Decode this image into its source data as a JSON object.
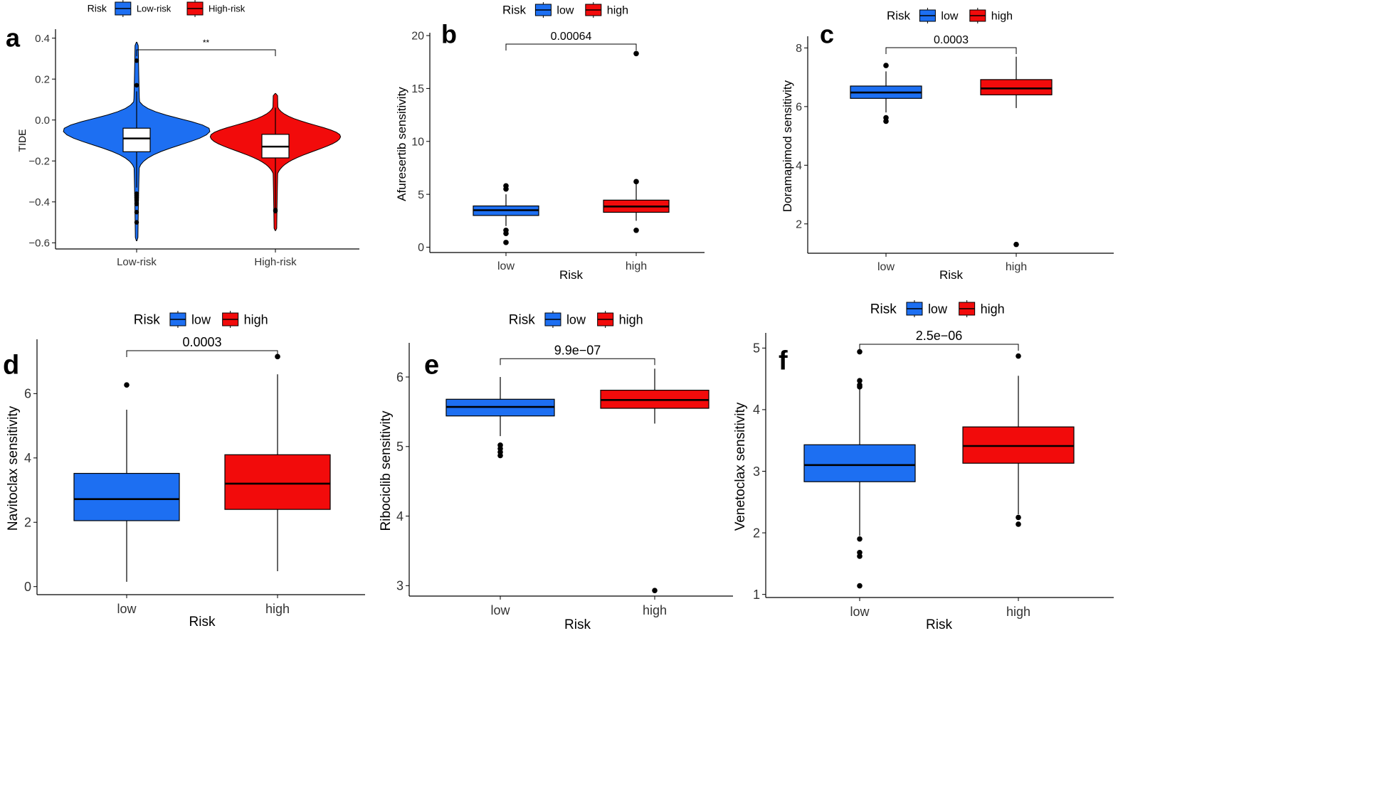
{
  "colors": {
    "low": "#1d6ff2",
    "high": "#f20b0b",
    "axis": "#000000",
    "median": "#000000"
  },
  "chart_data": [
    {
      "panel": "a",
      "type": "violin+box",
      "legend_title": "Risk",
      "legend_labels": [
        "Low-risk",
        "High-risk"
      ],
      "categories": [
        "Low-risk",
        "High-risk"
      ],
      "xlabel": "",
      "ylabel": "TIDE",
      "ylim": [
        -0.63,
        0.43
      ],
      "yticks": [
        -0.6,
        -0.4,
        -0.2,
        0.0,
        0.2,
        0.4
      ],
      "ytick_labels": [
        "−0.6",
        "−0.4",
        "−0.2",
        "0.0",
        "0.2",
        "0.4"
      ],
      "significance": "**",
      "series": [
        {
          "name": "Low-risk",
          "q1": -0.155,
          "median": -0.09,
          "q3": -0.04,
          "whisker_low": -0.33,
          "whisker_high": 0.14,
          "outliers": [
            0.29,
            0.17,
            -0.36,
            -0.37,
            -0.38,
            -0.39,
            -0.41,
            -0.45,
            -0.5
          ],
          "violin_min": -0.59,
          "violin_max": 0.38,
          "violin_peak": -0.05,
          "violin_halfwidth": 0.53
        },
        {
          "name": "High-risk",
          "q1": -0.185,
          "median": -0.13,
          "q3": -0.07,
          "whisker_low": -0.43,
          "whisker_high": 0.06,
          "outliers": [
            -0.44,
            -0.445
          ],
          "violin_min": -0.54,
          "violin_max": 0.13,
          "violin_peak": -0.08,
          "violin_halfwidth": 0.47
        }
      ]
    },
    {
      "panel": "b",
      "type": "box",
      "legend_title": "Risk",
      "legend_labels": [
        "low",
        "high"
      ],
      "categories": [
        "low",
        "high"
      ],
      "xlabel": "Risk",
      "ylabel": "Afuresertib sensitivity",
      "ylim": [
        -0.5,
        20
      ],
      "yticks": [
        0,
        5,
        10,
        15,
        20
      ],
      "ytick_labels": [
        "0",
        "5",
        "10",
        "15",
        "20"
      ],
      "pvalue": "0.00064",
      "series": [
        {
          "name": "low",
          "q1": 3.0,
          "median": 3.5,
          "q3": 3.9,
          "whisker_low": 2.0,
          "whisker_high": 5.0,
          "outliers": [
            5.8,
            5.5,
            1.6,
            1.3,
            0.45
          ]
        },
        {
          "name": "high",
          "q1": 3.3,
          "median": 3.85,
          "q3": 4.45,
          "whisker_low": 2.5,
          "whisker_high": 6.0,
          "outliers": [
            18.3,
            6.2,
            1.6
          ]
        }
      ]
    },
    {
      "panel": "c",
      "type": "box",
      "legend_title": "Risk",
      "legend_labels": [
        "low",
        "high"
      ],
      "categories": [
        "low",
        "high"
      ],
      "xlabel": "Risk",
      "ylabel": "Doramapimod sensitivity",
      "ylim": [
        1.0,
        8.3
      ],
      "yticks": [
        2,
        4,
        6,
        8
      ],
      "ytick_labels": [
        "2",
        "4",
        "6",
        "8"
      ],
      "pvalue": "0.0003",
      "series": [
        {
          "name": "low",
          "q1": 6.28,
          "median": 6.48,
          "q3": 6.7,
          "whisker_low": 5.8,
          "whisker_high": 7.2,
          "outliers": [
            7.4,
            5.62,
            5.5
          ]
        },
        {
          "name": "high",
          "q1": 6.4,
          "median": 6.62,
          "q3": 6.92,
          "whisker_low": 5.95,
          "whisker_high": 7.7,
          "outliers": [
            1.3
          ]
        }
      ]
    },
    {
      "panel": "d",
      "type": "box",
      "legend_title": "Risk",
      "legend_labels": [
        "low",
        "high"
      ],
      "categories": [
        "low",
        "high"
      ],
      "xlabel": "Risk",
      "ylabel": "Navitoclax sensitivity",
      "ylim": [
        -0.25,
        7.6
      ],
      "yticks": [
        0,
        2,
        4,
        6
      ],
      "ytick_labels": [
        "0",
        "2",
        "4",
        "6"
      ],
      "pvalue": "0.0003",
      "series": [
        {
          "name": "low",
          "q1": 2.05,
          "median": 2.72,
          "q3": 3.52,
          "whisker_low": 0.15,
          "whisker_high": 5.5,
          "outliers": [
            6.27
          ]
        },
        {
          "name": "high",
          "q1": 2.4,
          "median": 3.2,
          "q3": 4.1,
          "whisker_low": 0.48,
          "whisker_high": 6.6,
          "outliers": [
            7.15
          ]
        }
      ]
    },
    {
      "panel": "e",
      "type": "box",
      "legend_title": "Risk",
      "legend_labels": [
        "low",
        "high"
      ],
      "categories": [
        "low",
        "high"
      ],
      "xlabel": "Risk",
      "ylabel": "Ribociclib sensitivity",
      "ylim": [
        2.85,
        6.45
      ],
      "yticks": [
        3,
        4,
        5,
        6
      ],
      "ytick_labels": [
        "3",
        "4",
        "5",
        "6"
      ],
      "pvalue": "9.9e−07",
      "series": [
        {
          "name": "low",
          "q1": 5.44,
          "median": 5.57,
          "q3": 5.68,
          "whisker_low": 5.15,
          "whisker_high": 6.0,
          "outliers": [
            5.02,
            4.97,
            4.92,
            4.87
          ]
        },
        {
          "name": "high",
          "q1": 5.55,
          "median": 5.67,
          "q3": 5.81,
          "whisker_low": 5.33,
          "whisker_high": 6.12,
          "outliers": [
            2.93
          ]
        }
      ]
    },
    {
      "panel": "f",
      "type": "box",
      "legend_title": "Risk",
      "legend_labels": [
        "low",
        "high"
      ],
      "categories": [
        "low",
        "high"
      ],
      "xlabel": "Risk",
      "ylabel": "Venetoclax sensitivity",
      "ylim": [
        0.95,
        5.2
      ],
      "yticks": [
        1,
        2,
        3,
        4,
        5
      ],
      "ytick_labels": [
        "1",
        "2",
        "3",
        "4",
        "5"
      ],
      "pvalue": "2.5e−06",
      "series": [
        {
          "name": "low",
          "q1": 2.83,
          "median": 3.1,
          "q3": 3.43,
          "whisker_low": 1.95,
          "whisker_high": 4.35,
          "outliers": [
            4.94,
            4.47,
            4.4,
            4.37,
            1.9,
            1.68,
            1.62,
            1.14
          ]
        },
        {
          "name": "high",
          "q1": 3.13,
          "median": 3.41,
          "q3": 3.72,
          "whisker_low": 2.3,
          "whisker_high": 4.55,
          "outliers": [
            4.87,
            2.25,
            2.14
          ]
        }
      ]
    }
  ]
}
